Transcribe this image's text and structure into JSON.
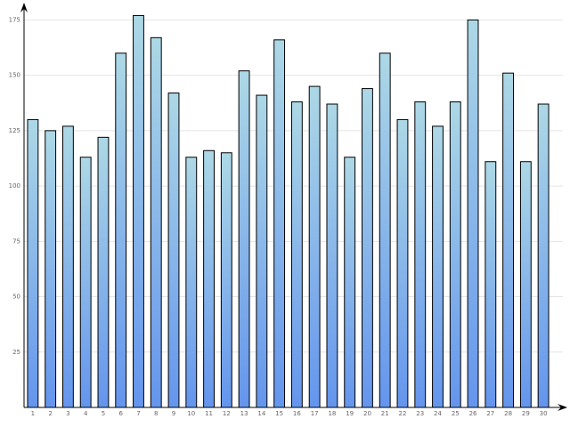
{
  "chart_data": {
    "type": "bar",
    "categories": [
      "1",
      "2",
      "3",
      "4",
      "5",
      "6",
      "7",
      "8",
      "9",
      "10",
      "11",
      "12",
      "13",
      "14",
      "15",
      "16",
      "17",
      "18",
      "19",
      "20",
      "21",
      "22",
      "23",
      "24",
      "25",
      "26",
      "27",
      "28",
      "29",
      "30"
    ],
    "values": [
      130,
      125,
      127,
      113,
      122,
      160,
      177,
      167,
      142,
      113,
      116,
      115,
      152,
      141,
      166,
      138,
      145,
      137,
      113,
      144,
      160,
      130,
      138,
      127,
      138,
      175,
      111,
      151,
      111,
      137
    ],
    "color": "#6495ed",
    "color_top": "#add8e6",
    "ylim": [
      0,
      182
    ],
    "yticks": [
      25,
      50,
      75,
      100,
      125,
      150,
      175
    ],
    "grid": true
  }
}
